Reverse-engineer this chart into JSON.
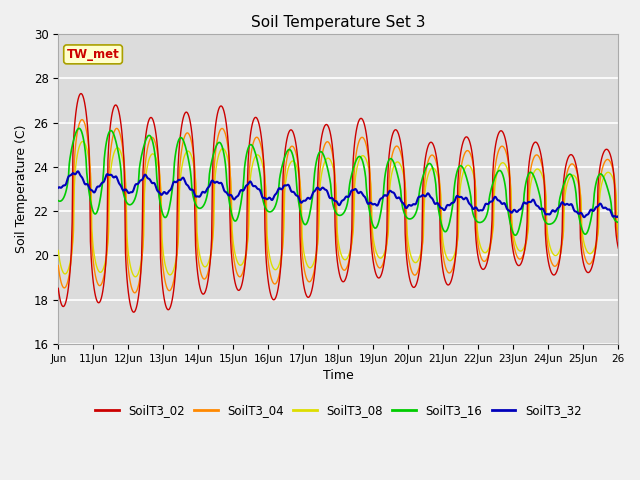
{
  "title": "Soil Temperature Set 3",
  "xlabel": "Time",
  "ylabel": "Soil Temperature (C)",
  "ylim": [
    16,
    30
  ],
  "xlim_days": [
    0,
    16
  ],
  "annotation": "TW_met",
  "fig_color": "#f0f0f0",
  "plot_bg_color": "#dcdcdc",
  "series_colors": {
    "SoilT3_02": "#cc0000",
    "SoilT3_04": "#ff8800",
    "SoilT3_08": "#dddd00",
    "SoilT3_16": "#00cc00",
    "SoilT3_32": "#0000bb"
  },
  "legend_colors": [
    "#cc0000",
    "#ff8800",
    "#dddd00",
    "#00cc00",
    "#0000bb"
  ],
  "legend_labels": [
    "SoilT3_02",
    "SoilT3_04",
    "SoilT3_08",
    "SoilT3_16",
    "SoilT3_32"
  ],
  "tick_labels": [
    "Jun",
    "11Jun",
    "12Jun",
    "13Jun",
    "14Jun",
    "15Jun",
    "16Jun",
    "17Jun",
    "18Jun",
    "19Jun",
    "20Jun",
    "21Jun",
    "22Jun",
    "23Jun",
    "24Jun",
    "25Jun",
    "26"
  ],
  "tick_positions": [
    0,
    1,
    2,
    3,
    4,
    5,
    6,
    7,
    8,
    9,
    10,
    11,
    12,
    13,
    14,
    15,
    16
  ],
  "yticks": [
    16,
    18,
    20,
    22,
    24,
    26,
    28,
    30
  ]
}
